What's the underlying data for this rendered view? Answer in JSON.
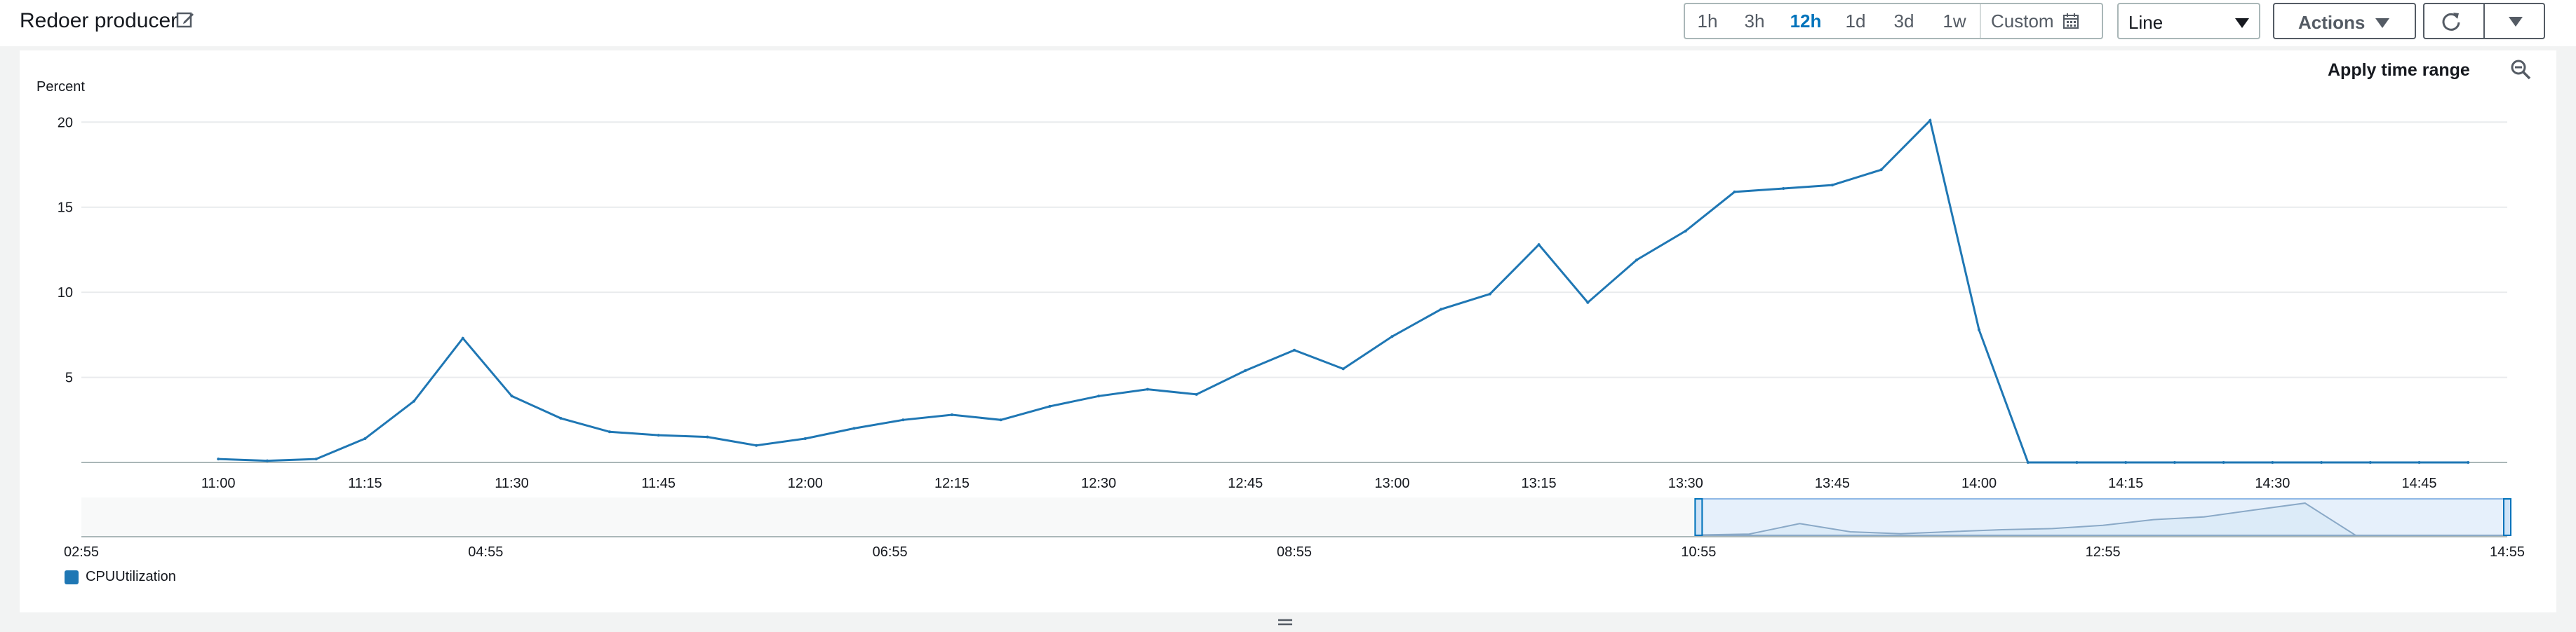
{
  "header": {
    "title": "Redoer producer",
    "time_ranges": [
      "1h",
      "3h",
      "12h",
      "1d",
      "3d",
      "1w"
    ],
    "active_range": "12h",
    "custom_label": "Custom",
    "view_select": "Line",
    "actions_label": "Actions"
  },
  "panel": {
    "apply_time_range": "Apply time range",
    "legend_label": "CPUUtilization"
  },
  "chart_data": [
    {
      "type": "line",
      "ylabel": "Percent",
      "ylim": [
        0,
        21
      ],
      "yticks": [
        5,
        10,
        15,
        20
      ],
      "grid": true,
      "x_tick_labels": [
        "11:00",
        "11:15",
        "11:30",
        "11:45",
        "12:00",
        "12:15",
        "12:30",
        "12:45",
        "13:00",
        "13:15",
        "13:30",
        "13:45",
        "14:00",
        "14:15",
        "14:30",
        "14:45"
      ],
      "series": [
        {
          "name": "CPUUtilization",
          "color": "#1f77b4",
          "x": [
            "11:00",
            "11:05",
            "11:10",
            "11:15",
            "11:20",
            "11:25",
            "11:30",
            "11:35",
            "11:40",
            "11:45",
            "11:50",
            "11:55",
            "12:00",
            "12:05",
            "12:10",
            "12:15",
            "12:20",
            "12:25",
            "12:30",
            "12:35",
            "12:40",
            "12:45",
            "12:50",
            "12:55",
            "13:00",
            "13:05",
            "13:10",
            "13:15",
            "13:20",
            "13:25",
            "13:30",
            "13:35",
            "13:40",
            "13:45",
            "13:50",
            "13:55",
            "14:00",
            "14:05",
            "14:10",
            "14:15",
            "14:20",
            "14:25",
            "14:30",
            "14:35",
            "14:40",
            "14:45",
            "14:50"
          ],
          "values": [
            0.2,
            0.1,
            0.2,
            1.4,
            3.6,
            7.3,
            3.9,
            2.6,
            1.8,
            1.6,
            1.5,
            1.0,
            1.4,
            2.0,
            2.5,
            2.8,
            2.5,
            3.3,
            3.9,
            4.3,
            4.0,
            5.4,
            6.6,
            5.5,
            7.4,
            9.0,
            9.9,
            12.8,
            9.4,
            11.9,
            13.6,
            15.9,
            16.1,
            16.3,
            17.2,
            20.1,
            7.8,
            0.0,
            0.0,
            0.0,
            0.0,
            0.0,
            0.0,
            0.0,
            0.0,
            0.0,
            0.0
          ]
        }
      ]
    },
    {
      "type": "area",
      "x_tick_labels": [
        "02:55",
        "04:55",
        "06:55",
        "08:55",
        "10:55",
        "12:55",
        "14:55"
      ],
      "selected_range": [
        "10:55",
        "14:55"
      ],
      "series": [
        {
          "name": "CPUUtilization",
          "color": "#1f77b4",
          "x": [
            "10:55",
            "11:10",
            "11:25",
            "11:40",
            "11:55",
            "12:10",
            "12:25",
            "12:40",
            "12:55",
            "13:10",
            "13:25",
            "13:40",
            "13:55",
            "14:10",
            "14:25",
            "14:40",
            "14:55"
          ],
          "values": [
            0.2,
            0.8,
            7.3,
            2.2,
            1.0,
            2.3,
            3.5,
            4.2,
            6.2,
            9.8,
            11.5,
            15.9,
            20.1,
            0.0,
            0.0,
            0.0,
            0.0
          ]
        }
      ]
    }
  ]
}
